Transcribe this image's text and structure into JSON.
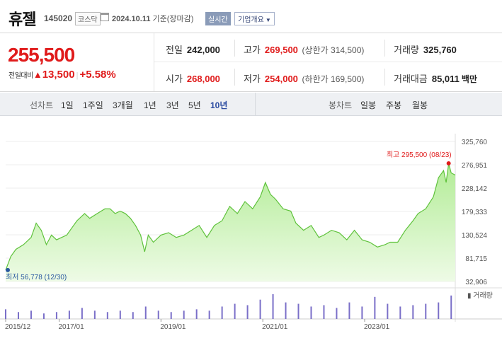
{
  "header": {
    "name": "휴젤",
    "code": "145020",
    "market": "코스닥",
    "date": "2024.10.11",
    "date_suffix": "기준(장마감)",
    "realtime_button": "실시간",
    "corp_button": "기업개요"
  },
  "price": {
    "current": "255,500",
    "change_label": "전일대비",
    "change_arrow": "▲",
    "change_amount": "13,500",
    "change_percent": "+5.58%",
    "stats": {
      "prev_close_label": "전일",
      "prev_close": "242,000",
      "high_label": "고가",
      "high": "269,500",
      "upper_limit_label": "상한가",
      "upper_limit": "314,500",
      "volume_label": "거래량",
      "volume": "325,760",
      "open_label": "시가",
      "open": "268,000",
      "low_label": "저가",
      "low": "254,000",
      "lower_limit_label": "하한가",
      "lower_limit": "169,500",
      "value_label": "거래대금",
      "value": "85,011",
      "value_unit": "백만"
    }
  },
  "period_bar": {
    "line_label": "선차트",
    "line_periods": [
      "1일",
      "1주일",
      "3개월",
      "1년",
      "3년",
      "5년",
      "10년"
    ],
    "selected": "10년",
    "candle_label": "봉차트",
    "candle_periods": [
      "일봉",
      "주봉",
      "월봉"
    ]
  },
  "colors": {
    "accent_red": "#e01b1b",
    "line_green": "#5fc23c",
    "area_green": "#c8f0b4",
    "volume_purple": "#7a6fc8",
    "low_marker": "#2a5aa0"
  },
  "chart_data": {
    "type": "area",
    "y_ticks": [
      "325,760",
      "276,951",
      "228,142",
      "179,333",
      "130,524",
      "81,715",
      "32,906"
    ],
    "ylim": [
      32906,
      325760
    ],
    "x_ticks": [
      "2015/12",
      "2017/01",
      "2019/01",
      "2021/01",
      "2023/01"
    ],
    "x_tick_values": [
      2015.95,
      2017.0,
      2019.0,
      2021.0,
      2023.0
    ],
    "xlim": [
      2015.95,
      2024.78
    ],
    "high_annotation": "최고 295,500 (08/23)",
    "low_annotation": "최저 56,778 (12/30)",
    "volume_label": "거래량",
    "series": [
      {
        "x": [
          2015.95,
          2016.05,
          2016.15,
          2016.3,
          2016.45,
          2016.55,
          2016.65,
          2016.75,
          2016.85,
          2016.95,
          2017.05,
          2017.15,
          2017.25,
          2017.35,
          2017.5,
          2017.6,
          2017.75,
          2017.9,
          2018.0,
          2018.1,
          2018.2,
          2018.3,
          2018.4,
          2018.5,
          2018.6,
          2018.68,
          2018.75,
          2018.85,
          2019.0,
          2019.15,
          2019.3,
          2019.45,
          2019.6,
          2019.75,
          2019.9,
          2020.05,
          2020.2,
          2020.35,
          2020.5,
          2020.65,
          2020.8,
          2020.95,
          2021.05,
          2021.15,
          2021.25,
          2021.4,
          2021.55,
          2021.65,
          2021.8,
          2021.95,
          2022.1,
          2022.2,
          2022.35,
          2022.5,
          2022.65,
          2022.8,
          2022.95,
          2023.1,
          2023.25,
          2023.4,
          2023.5,
          2023.65,
          2023.8,
          2023.95,
          2024.05,
          2024.2,
          2024.35,
          2024.45,
          2024.55,
          2024.6,
          2024.65,
          2024.7,
          2024.78
        ],
        "y": [
          56778,
          85000,
          100000,
          110000,
          125000,
          155000,
          140000,
          110000,
          130000,
          120000,
          125000,
          130000,
          145000,
          160000,
          175000,
          165000,
          175000,
          185000,
          185000,
          175000,
          180000,
          175000,
          165000,
          150000,
          130000,
          95000,
          130000,
          115000,
          130000,
          135000,
          125000,
          130000,
          140000,
          150000,
          125000,
          150000,
          160000,
          190000,
          175000,
          200000,
          185000,
          210000,
          240000,
          215000,
          205000,
          185000,
          180000,
          155000,
          140000,
          150000,
          125000,
          130000,
          140000,
          135000,
          120000,
          140000,
          120000,
          115000,
          105000,
          110000,
          115000,
          115000,
          140000,
          160000,
          175000,
          185000,
          210000,
          250000,
          265000,
          240000,
          280000,
          260000,
          255500
        ]
      }
    ],
    "volume": {
      "x": [
        2015.95,
        2016.2,
        2016.45,
        2016.7,
        2016.95,
        2017.2,
        2017.45,
        2017.7,
        2017.95,
        2018.2,
        2018.45,
        2018.7,
        2018.95,
        2019.2,
        2019.45,
        2019.7,
        2019.95,
        2020.2,
        2020.45,
        2020.7,
        2020.95,
        2021.2,
        2021.45,
        2021.7,
        2021.95,
        2022.2,
        2022.45,
        2022.7,
        2022.95,
        2023.2,
        2023.45,
        2023.7,
        2023.95,
        2024.2,
        2024.45,
        2024.7
      ],
      "values": [
        0.35,
        0.25,
        0.3,
        0.2,
        0.25,
        0.3,
        0.4,
        0.3,
        0.25,
        0.3,
        0.25,
        0.45,
        0.3,
        0.25,
        0.3,
        0.35,
        0.3,
        0.45,
        0.55,
        0.5,
        0.7,
        0.9,
        0.6,
        0.55,
        0.45,
        0.5,
        0.4,
        0.6,
        0.45,
        0.8,
        0.55,
        0.45,
        0.5,
        0.55,
        0.6,
        0.85
      ]
    }
  }
}
